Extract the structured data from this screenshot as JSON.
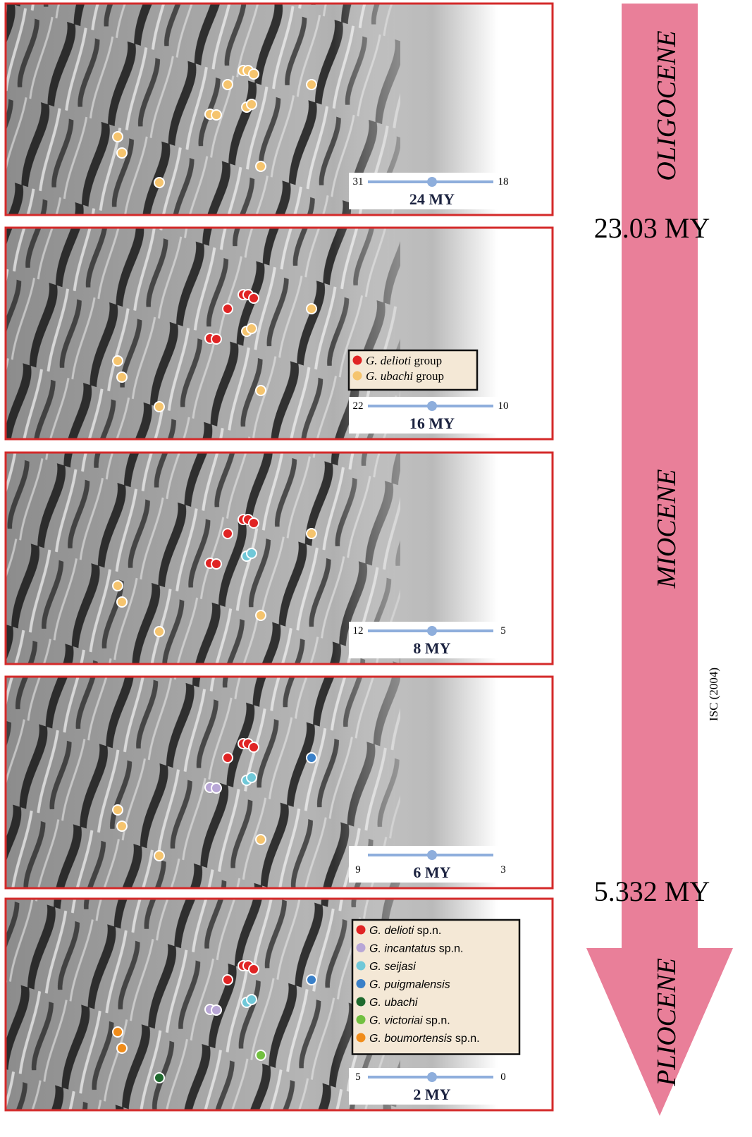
{
  "panels": [
    {
      "slider": {
        "left": "31",
        "right": "18",
        "label": "24 MY"
      }
    },
    {
      "legend": [
        {
          "species": "G. delioti",
          "suffix": "group"
        },
        {
          "species": "G. ubachi",
          "suffix": "group"
        }
      ],
      "slider": {
        "left": "22",
        "right": "10",
        "label": "16 MY"
      }
    },
    {
      "slider": {
        "left": "12",
        "right": "5",
        "label": "8 MY"
      }
    },
    {
      "slider": {
        "left": "9",
        "right": "3",
        "label": "6 MY"
      }
    },
    {
      "legend": [
        {
          "species": "G. delioti",
          "suffix": "sp.n."
        },
        {
          "species": "G. incantatus",
          "suffix": "sp.n."
        },
        {
          "species": "G. seijasi"
        },
        {
          "species": "G. puigmalensis"
        },
        {
          "species": "G. ubachi"
        },
        {
          "species": "G. victoriai",
          "suffix": "sp.n."
        },
        {
          "species": "G. boumortensis",
          "suffix": "sp.n."
        }
      ],
      "slider": {
        "left": "5",
        "right": "0",
        "label": "2 MY"
      }
    }
  ],
  "timeline": {
    "epochs": [
      "OLIGOCENE",
      "MIOCENE",
      "PLIOCENE"
    ],
    "boundaries": [
      "23.03 MY",
      "5.332 MY"
    ],
    "source": "ISC (2004)"
  }
}
